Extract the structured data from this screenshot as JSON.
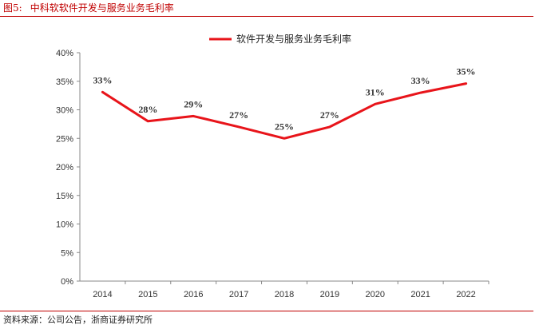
{
  "header": {
    "figure_number": "图5:",
    "title": "中科软软件开发与服务业务毛利率"
  },
  "source": "资料来源：公司公告，浙商证券研究所",
  "colors": {
    "accent": "#c00000",
    "series": "#e8141a",
    "axis": "#888888"
  },
  "chart_data": {
    "type": "line",
    "title": "",
    "xlabel": "",
    "ylabel": "",
    "categories": [
      "2014",
      "2015",
      "2016",
      "2017",
      "2018",
      "2019",
      "2020",
      "2021",
      "2022"
    ],
    "series": [
      {
        "name": "软件开发与服务业务毛利率",
        "values": [
          33,
          28,
          29,
          27,
          25,
          27,
          31,
          33,
          35
        ],
        "actual": [
          33.1,
          28.0,
          28.9,
          27.0,
          25.0,
          27.0,
          31.0,
          33.0,
          34.6
        ],
        "labels": [
          "33%",
          "28%",
          "29%",
          "27%",
          "25%",
          "27%",
          "31%",
          "33%",
          "35%"
        ]
      }
    ],
    "ylim": [
      0,
      40
    ],
    "yticks": [
      "0%",
      "5%",
      "10%",
      "15%",
      "20%",
      "25%",
      "30%",
      "35%",
      "40%"
    ],
    "grid": false,
    "legend_position": "top"
  }
}
